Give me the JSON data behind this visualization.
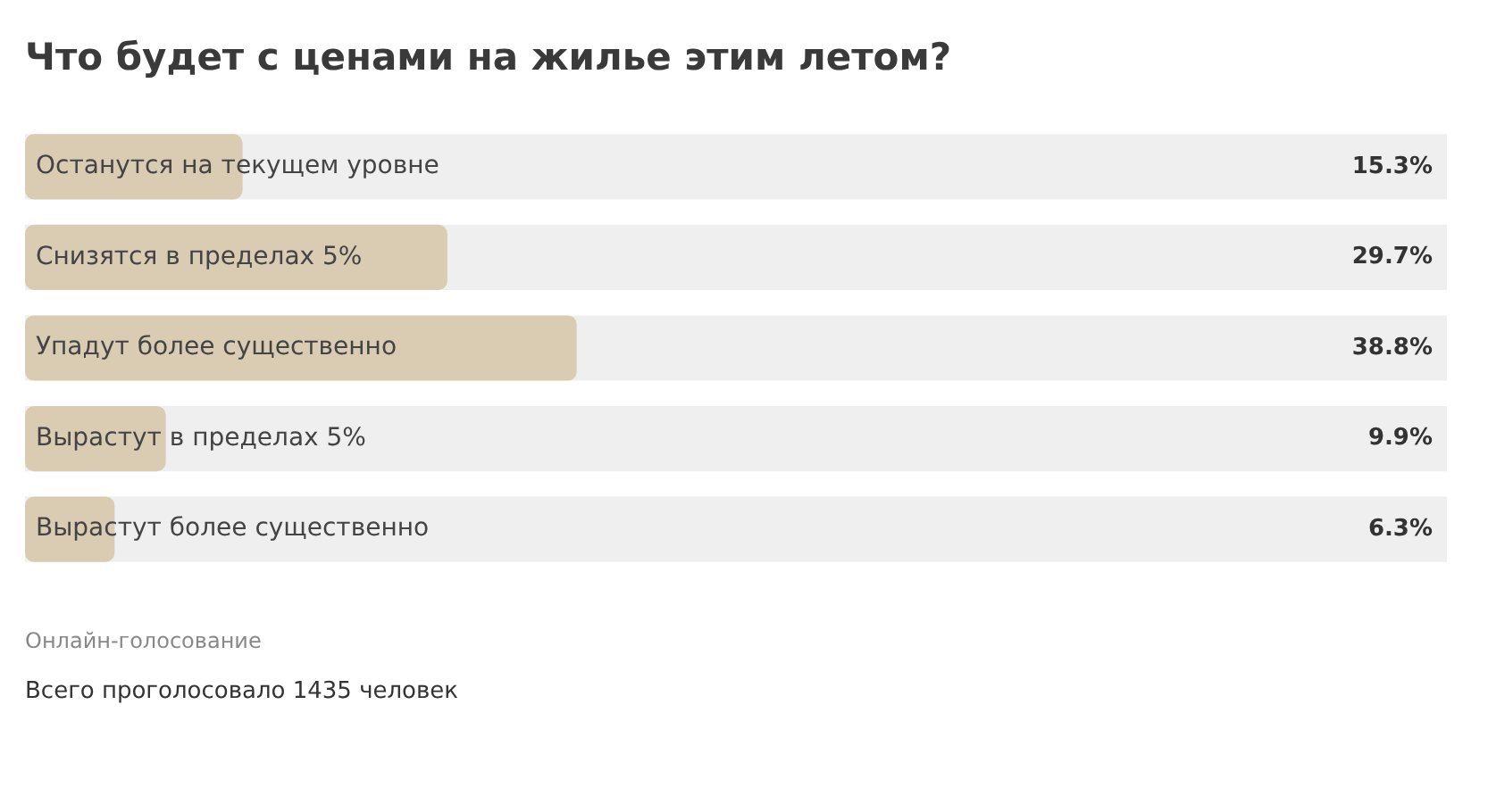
{
  "chart_data": {
    "type": "bar",
    "orientation": "horizontal",
    "title": "Что будет с ценами на жилье этим летом?",
    "categories": [
      "Останутся на текущем уровне",
      "Снизятся в пределах 5%",
      "Упадут более существенно",
      "Вырастут в пределах 5%",
      "Вырастут более существенно"
    ],
    "values": [
      15.3,
      29.7,
      38.8,
      9.9,
      6.3
    ],
    "value_labels": [
      "15.3%",
      "29.7%",
      "38.8%",
      "9.9%",
      "6.3%"
    ],
    "color": "#dacbb3",
    "xlim": [
      0,
      100
    ],
    "tick_labels": "y",
    "legend": false,
    "annotations": [
      "Онлайн-голосование",
      "Всего проголосовало 1435 человек"
    ]
  }
}
